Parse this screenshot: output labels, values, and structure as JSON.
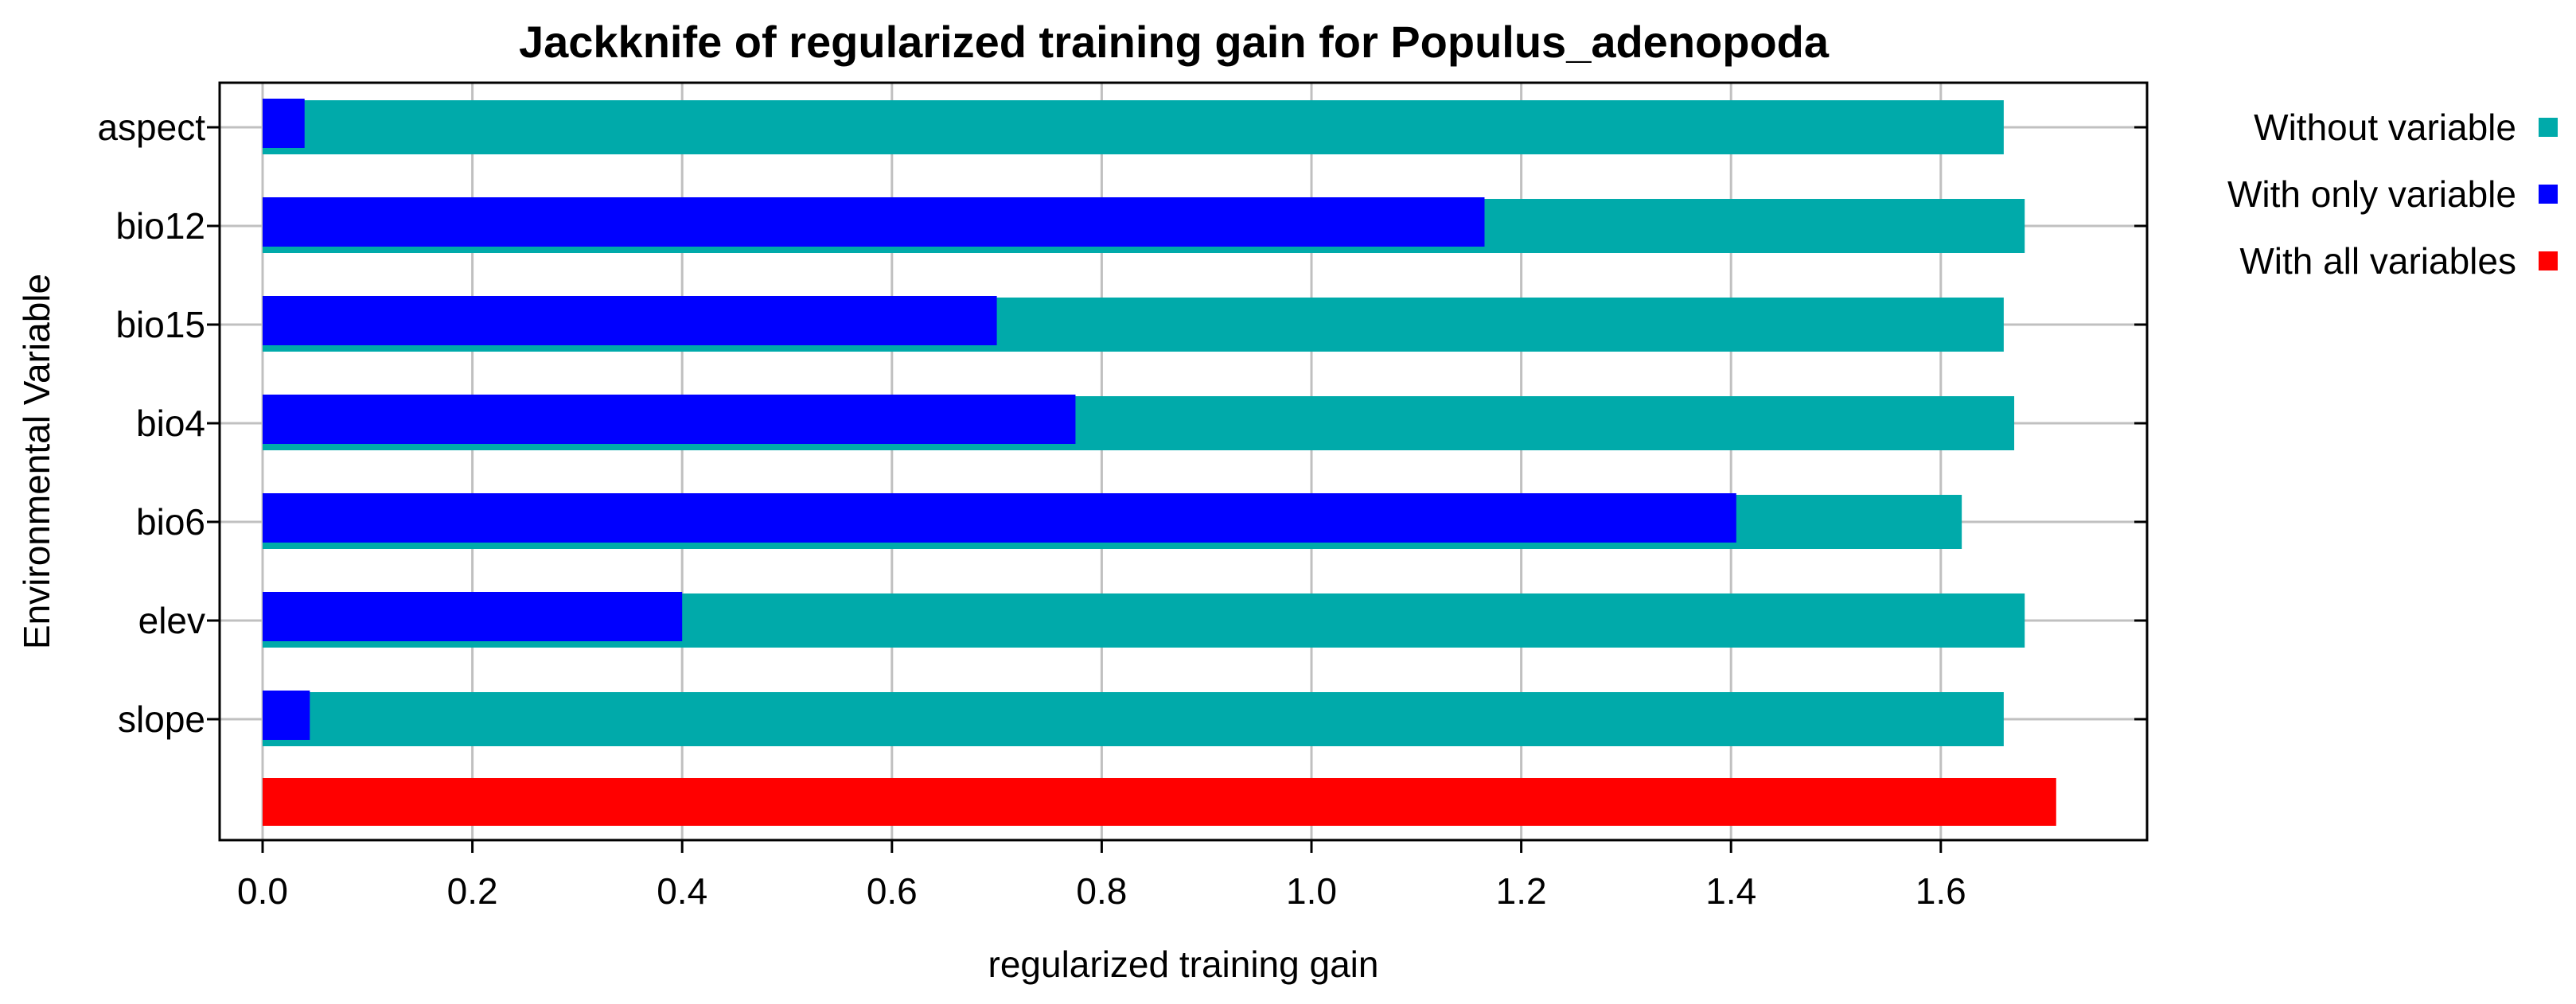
{
  "chart_data": {
    "type": "bar",
    "orientation": "horizontal",
    "title": "Jackknife of regularized training gain for Populus_adenopoda",
    "xlabel": "regularized training gain",
    "ylabel": "Environmental Variable",
    "xlim": [
      0,
      1.8
    ],
    "xticks": [
      0.0,
      0.2,
      0.4,
      0.6,
      0.8,
      1.0,
      1.2,
      1.4,
      1.6
    ],
    "xtick_labels": [
      "0.0",
      "0.2",
      "0.4",
      "0.6",
      "0.8",
      "1.0",
      "1.2",
      "1.4",
      "1.6"
    ],
    "grid": true,
    "legend_position": "right",
    "categories": [
      "aspect",
      "bio12",
      "bio15",
      "bio4",
      "bio6",
      "elev",
      "slope"
    ],
    "series": [
      {
        "name": "Without variable",
        "color": "#00aaaa",
        "values": [
          1.66,
          1.68,
          1.66,
          1.67,
          1.62,
          1.68,
          1.66
        ]
      },
      {
        "name": "With only variable",
        "color": "#0000ff",
        "values": [
          0.04,
          1.165,
          0.7,
          0.775,
          1.405,
          0.4,
          0.045
        ]
      }
    ],
    "all_variables": {
      "name": "With all variables",
      "color": "#ff0000",
      "value": 1.71
    }
  }
}
